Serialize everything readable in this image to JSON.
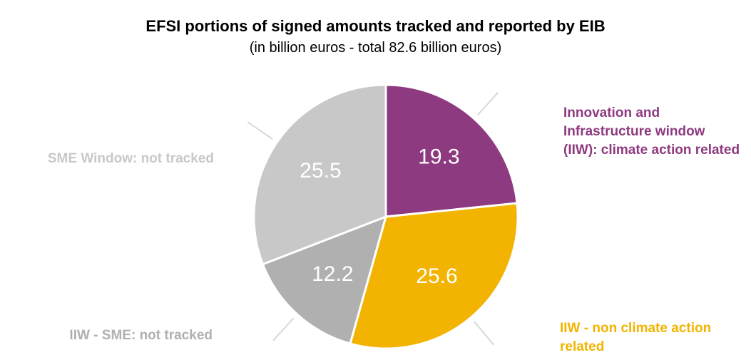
{
  "chart_data": {
    "type": "pie",
    "title": "EFSI portions of signed amounts tracked and reported by EIB",
    "subtitle": "(in billion euros - total 82.6 billion euros)",
    "categories": [
      "Innovation and Infrastructure window (IIW): climate action related",
      "IIW - non climate action related",
      "IIW - SME: not tracked",
      "SME Window: not tracked"
    ],
    "values": [
      19.3,
      25.6,
      12.2,
      25.5
    ],
    "colors": [
      "#8e3a80",
      "#f2b400",
      "#b0b0b0",
      "#c8c8c8"
    ]
  }
}
